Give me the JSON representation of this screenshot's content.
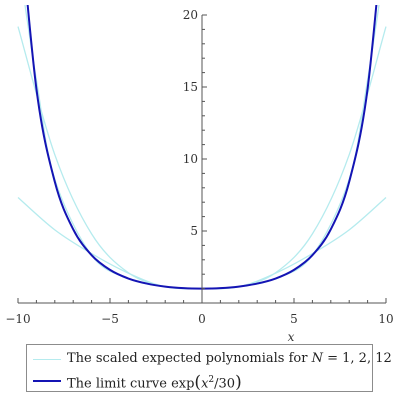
{
  "chart_data": {
    "type": "line",
    "title": "",
    "xlabel": "x",
    "ylabel": "",
    "xlim": [
      -10,
      10
    ],
    "ylim": [
      0,
      20
    ],
    "x_ticks": [
      -10,
      -5,
      0,
      5,
      10
    ],
    "x_tick_labels": [
      "−10",
      "−5",
      "0",
      "5",
      "10"
    ],
    "y_ticks": [
      5,
      10,
      15,
      20
    ],
    "y_tick_labels": [
      "5",
      "10",
      "15",
      "20"
    ],
    "grid": false,
    "legend_position": "bottom",
    "series": [
      {
        "name": "The scaled expected polynomials for N = 1, 2, 12",
        "color": "#b5ebee",
        "style": "thin",
        "curves": [
          {
            "N": 1,
            "x": [
              -10,
              -8,
              -6,
              -4,
              -2,
              0,
              2,
              4,
              6,
              8,
              10
            ],
            "y": [
              7.33,
              5.08,
              3.43,
              2.07,
              1.13,
              1.0,
              1.13,
              2.07,
              3.43,
              5.08,
              7.33
            ]
          },
          {
            "N": 2,
            "x": [
              -10,
              -8,
              -6,
              -4,
              -2,
              0,
              2,
              4,
              6,
              8,
              10
            ],
            "y": [
              19.2,
              10.3,
              4.8,
              2.1,
              1.14,
              1.0,
              1.14,
              2.1,
              4.8,
              10.3,
              19.2
            ]
          },
          {
            "N": 12,
            "x": [
              -10,
              -9,
              -8,
              -6,
              -4,
              -2,
              0,
              2,
              4,
              6,
              8,
              9,
              10
            ],
            "y": [
              24.0,
              15.5,
              8.6,
              3.31,
              1.7,
              1.14,
              1.0,
              1.14,
              1.7,
              3.31,
              8.6,
              15.5,
              24.0
            ]
          }
        ]
      },
      {
        "name": "The limit curve exp(x^2/30)",
        "color": "#1414b4",
        "style": "thick",
        "x": [
          -10,
          -9,
          -8,
          -7,
          -6,
          -5,
          -4,
          -3,
          -2,
          -1,
          0,
          1,
          2,
          3,
          4,
          5,
          6,
          7,
          8,
          9,
          10
        ],
        "y": [
          28.03,
          14.88,
          8.42,
          5.12,
          3.32,
          2.3,
          1.7,
          1.35,
          1.14,
          1.03,
          1.0,
          1.03,
          1.14,
          1.35,
          1.7,
          2.3,
          3.32,
          5.12,
          8.42,
          14.88,
          28.03
        ]
      }
    ]
  },
  "legend": {
    "item1_text": "The scaled expected polynomials for ",
    "item1_N": "N",
    "item1_values": " = 1, 2, 12",
    "item2_text": "The limit curve exp",
    "item2_x": "x",
    "item2_exp": "2",
    "item2_rest": "/30"
  }
}
